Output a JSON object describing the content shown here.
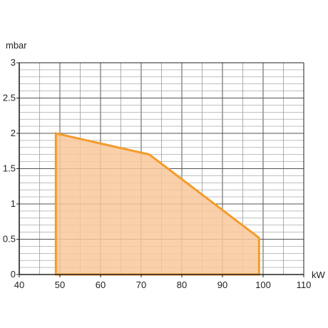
{
  "chart_data": {
    "type": "area",
    "title": "",
    "xlabel": "kW",
    "ylabel": "mbar",
    "xlim": [
      40,
      110
    ],
    "ylim": [
      0,
      3
    ],
    "x_ticks": [
      40,
      50,
      60,
      70,
      80,
      90,
      100,
      110
    ],
    "x_tick_labels": [
      "40",
      "50",
      "60",
      "70",
      "80",
      "90",
      "100",
      "110"
    ],
    "y_ticks": [
      0,
      0.5,
      1,
      1.5,
      2,
      2.5,
      3
    ],
    "y_tick_labels": [
      "0",
      "0.5",
      "1",
      "1.5",
      "2",
      "2.5",
      "3"
    ],
    "x_minor_step": 5,
    "y_minor_step": 0.1,
    "grid": true,
    "legend": "none",
    "series": [
      {
        "x": [
          49,
          49,
          72,
          99,
          99
        ],
        "y": [
          0,
          2.0,
          1.7,
          0.52,
          0
        ]
      }
    ],
    "colors": {
      "line": "#f39c2c",
      "fill": "#f8c89a",
      "grid": "#9a9a9a",
      "axis": "#222222"
    }
  }
}
